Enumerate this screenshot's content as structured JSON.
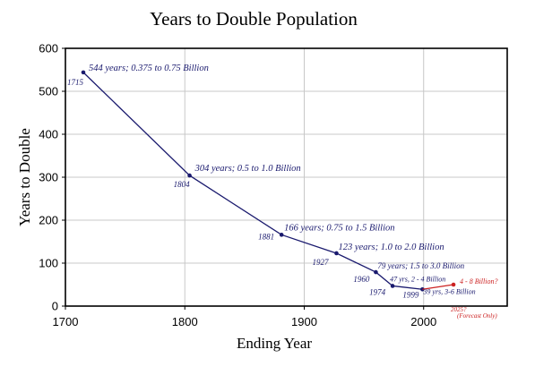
{
  "chart_data": {
    "type": "line",
    "title": "Years to Double Population",
    "xlabel": "Ending Year",
    "ylabel": "Years to Double",
    "xlim": [
      1700,
      2070
    ],
    "ylim": [
      0,
      600
    ],
    "x_ticks": [
      "1700",
      "1800",
      "1900",
      "2000"
    ],
    "x_tick_values": [
      1700,
      1800,
      1900,
      2000
    ],
    "y_ticks": [
      "0",
      "100",
      "200",
      "300",
      "400",
      "500",
      "600"
    ],
    "y_tick_values": [
      0,
      100,
      200,
      300,
      400,
      500,
      600
    ],
    "grid": true,
    "series": [
      {
        "color": "#1a1a6e",
        "x": [
          1715,
          1804,
          1881,
          1927,
          1960,
          1974,
          1999
        ],
        "y": [
          544,
          304,
          166,
          123,
          79,
          47,
          39
        ],
        "year_labels": [
          "1715",
          "1804",
          "1881",
          "1927",
          "1960",
          "1974",
          "1999"
        ],
        "annotations": [
          "544 years; 0.375 to 0.75 Billion",
          "304 years; 0.5 to 1.0 Billion",
          "166 years; 0.75 to 1.5 Billion",
          "123 years; 1.0 to 2.0 Billion",
          "79 years; 1.5 to 3.0 Billion",
          "47 yrs, 2 - 4 Billion",
          "39 yrs, 3-6 Billion"
        ]
      },
      {
        "color": "#cc2222",
        "x": [
          1999,
          2025
        ],
        "y": [
          39,
          50
        ],
        "forecast_year_label": "2025?",
        "forecast_note": "(Forecast Only)",
        "forecast_annotation": "4 - 8 Billion?"
      }
    ]
  }
}
